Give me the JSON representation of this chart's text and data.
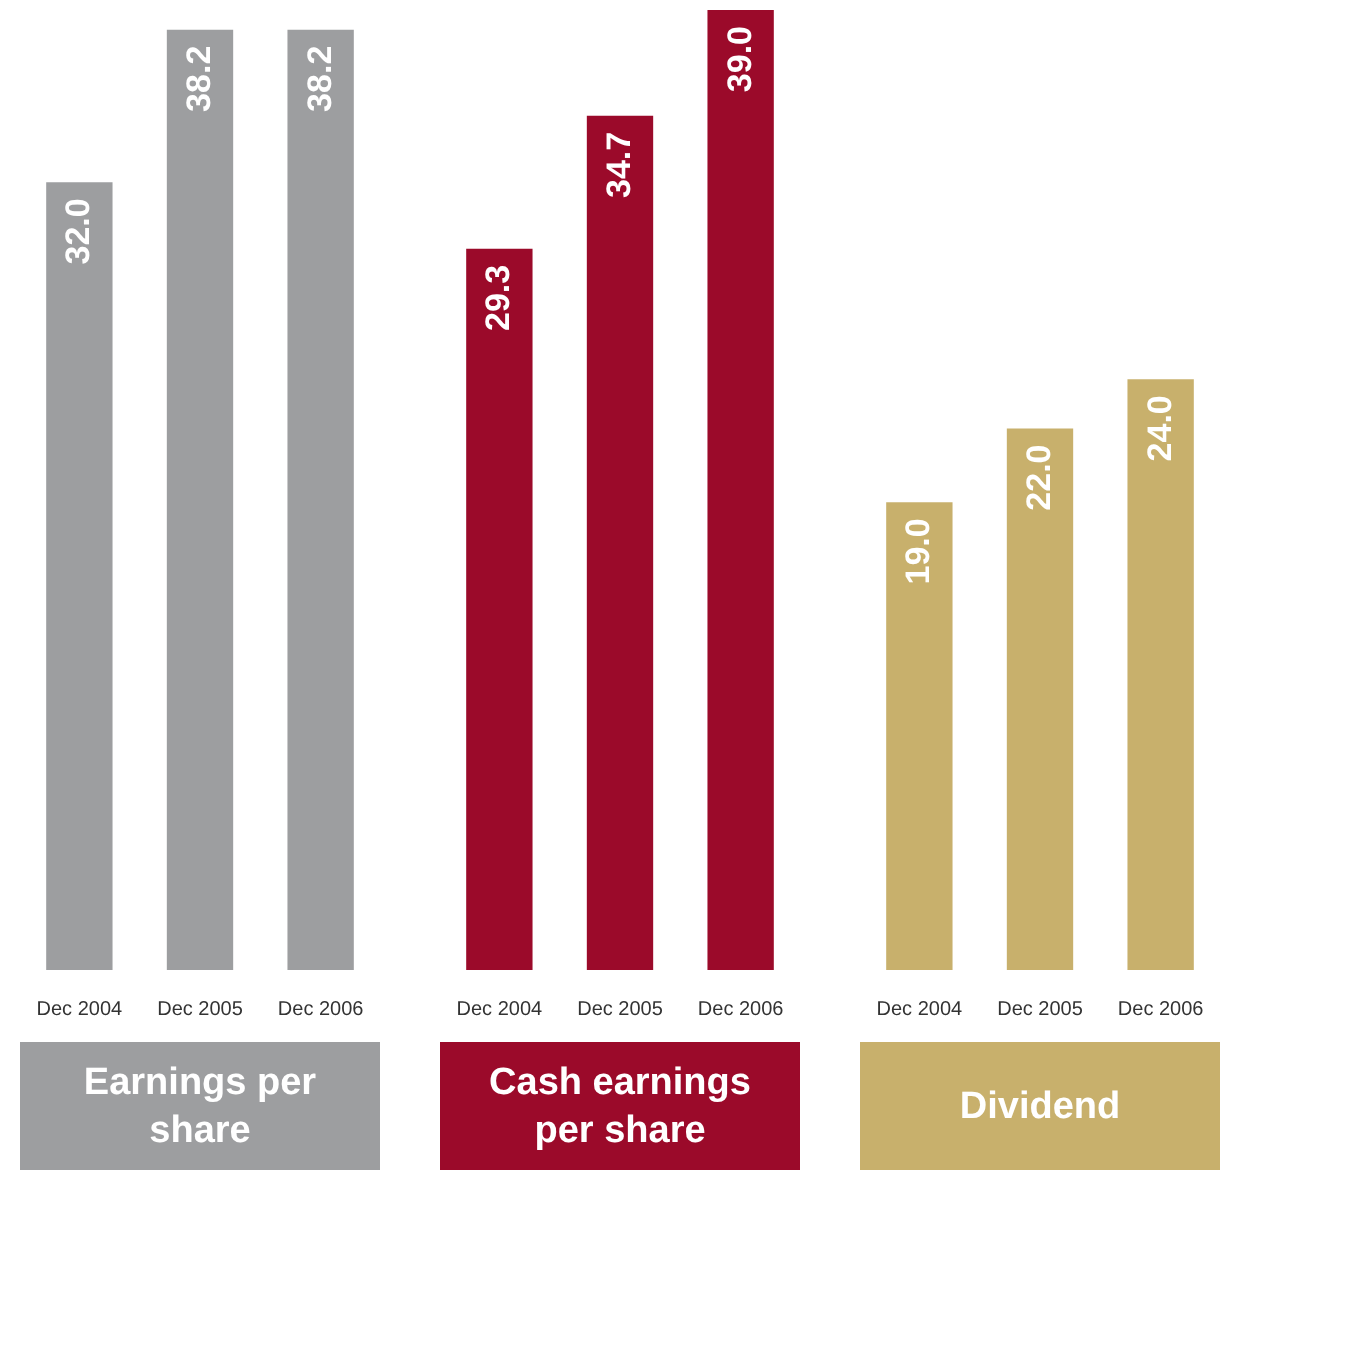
{
  "chart_data": [
    {
      "type": "bar",
      "title": "Earnings per share",
      "categories": [
        "Dec 2004",
        "Dec 2005",
        "Dec 2006"
      ],
      "values": [
        32.0,
        38.2,
        38.2
      ],
      "value_labels": [
        "32.0",
        "38.2",
        "38.2"
      ],
      "color": "#9d9ea0",
      "tick_labels": "x",
      "grid": false
    },
    {
      "type": "bar",
      "title": "Cash earnings per share",
      "categories": [
        "Dec 2004",
        "Dec 2005",
        "Dec 2006"
      ],
      "values": [
        29.3,
        34.7,
        39.0
      ],
      "value_labels": [
        "29.3",
        "34.7",
        "39.0"
      ],
      "color": "#9b0a2a",
      "tick_labels": "x",
      "grid": false
    },
    {
      "type": "bar",
      "title": "Dividend",
      "categories": [
        "Dec 2004",
        "Dec 2005",
        "Dec 2006"
      ],
      "values": [
        19.0,
        22.0,
        24.0
      ],
      "value_labels": [
        "19.0",
        "22.0",
        "24.0"
      ],
      "color": "#c8b06c",
      "tick_labels": "x",
      "grid": false
    }
  ]
}
